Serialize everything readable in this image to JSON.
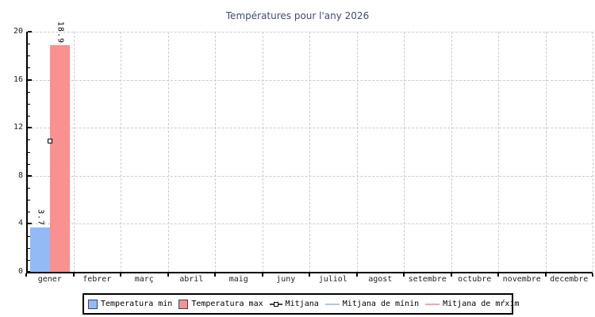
{
  "chart_data": {
    "type": "bar",
    "title": "Températures pour l'any 2026",
    "categories": [
      "gener",
      "febrer",
      "març",
      "abril",
      "maig",
      "juny",
      "juliol",
      "agost",
      "setembre",
      "octubre",
      "novembre",
      "decembre"
    ],
    "series": [
      {
        "name": "Temperatura min",
        "kind": "bar",
        "color": "#93baf5",
        "values": [
          3.7,
          null,
          null,
          null,
          null,
          null,
          null,
          null,
          null,
          null,
          null,
          null
        ]
      },
      {
        "name": "Temperatura max",
        "kind": "bar",
        "color": "#f8918f",
        "values": [
          18.9,
          null,
          null,
          null,
          null,
          null,
          null,
          null,
          null,
          null,
          null,
          null
        ]
      },
      {
        "name": "Mitjana",
        "kind": "point",
        "color": "#ffffff",
        "values": [
          10.9,
          null,
          null,
          null,
          null,
          null,
          null,
          null,
          null,
          null,
          null,
          null
        ]
      }
    ],
    "bar_value_labels": [
      "3.7",
      "18.9"
    ],
    "ylim": [
      0,
      20
    ],
    "yticks": [
      0,
      4,
      8,
      12,
      16,
      20
    ],
    "minor_tick_step": 1,
    "grid": "dashed",
    "legend_position": "bottom",
    "legend": [
      {
        "label": "Temperatura min",
        "swatch": "box",
        "color": "#93baf5"
      },
      {
        "label": "Temperatura max",
        "swatch": "box",
        "color": "#f8918f"
      },
      {
        "label": "Mitjana",
        "swatch": "marker",
        "color": "#444444"
      },
      {
        "label": "Mitjana de mínin",
        "swatch": "line",
        "color": "#a9c9f3"
      },
      {
        "label": "Mitjana de mŕxim",
        "swatch": "line",
        "color": "#f8a6a6"
      }
    ],
    "colors": {
      "title_text": "#3d4d70",
      "axis": "#000000",
      "grid": "#cccccc",
      "swatch_border": "#33447a"
    }
  }
}
